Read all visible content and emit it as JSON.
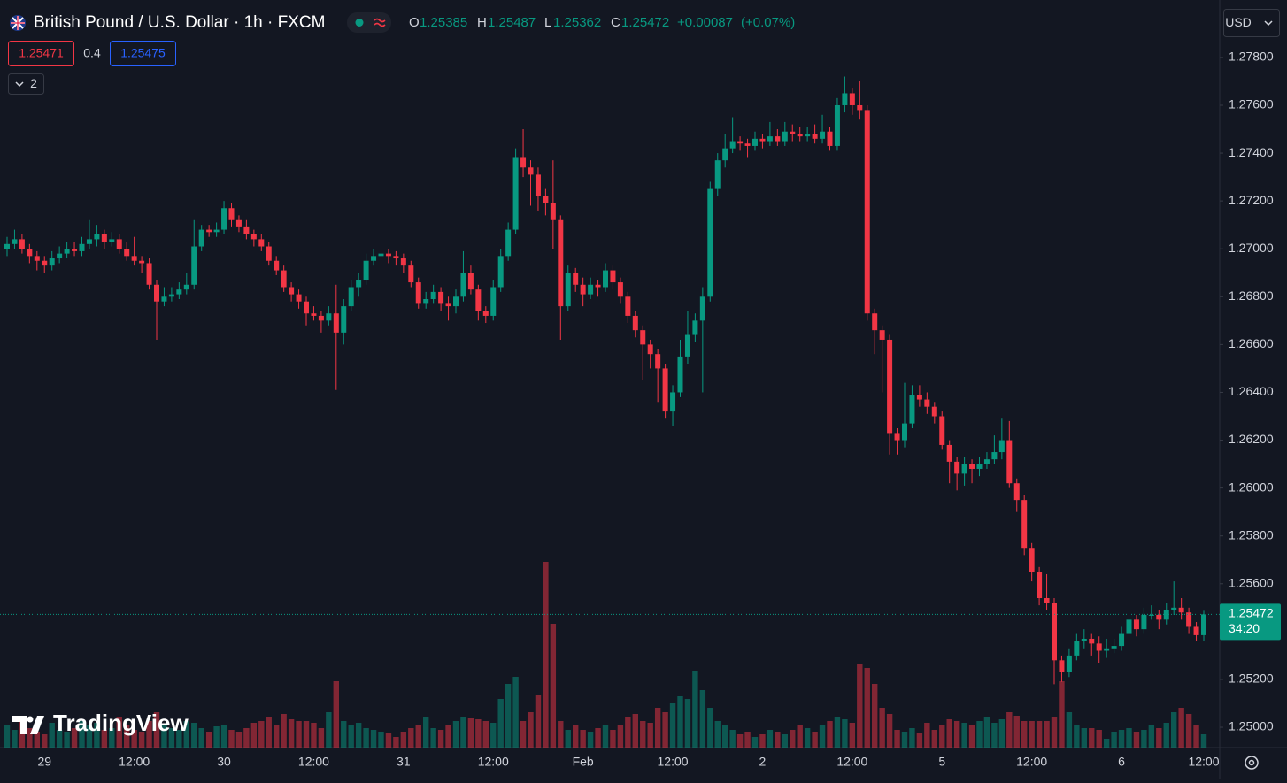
{
  "header": {
    "title": "British Pound / U.S. Dollar · 1h · FXCM",
    "ohlc_labels": [
      "O",
      "H",
      "L",
      "C"
    ],
    "change": {
      "value": 0.00087,
      "label": "+0.00087"
    },
    "change_pct": {
      "value": 0.07,
      "label": "(+0.07%)"
    },
    "bid": 1.25471,
    "spread": 0.4,
    "ask": 1.25475,
    "indicators": 2,
    "currency": "USD",
    "countdown": "34:20",
    "logo": "TradingView"
  },
  "chart_data": {
    "type": "candlestick",
    "up_color": "#089981",
    "down_color": "#f23645",
    "grid": false,
    "ylim": [
      1.24915,
      1.2804
    ],
    "yticks": [
      {
        "value": 1.25,
        "label": "1.25000"
      },
      {
        "value": 1.252,
        "label": "1.25200"
      },
      {
        "value": 1.254,
        "label": "1.25400"
      },
      {
        "value": 1.256,
        "label": "1.25600"
      },
      {
        "value": 1.258,
        "label": "1.25800"
      },
      {
        "value": 1.26,
        "label": "1.26000"
      },
      {
        "value": 1.262,
        "label": "1.26200"
      },
      {
        "value": 1.264,
        "label": "1.26400"
      },
      {
        "value": 1.266,
        "label": "1.26600"
      },
      {
        "value": 1.268,
        "label": "1.26800"
      },
      {
        "value": 1.27,
        "label": "1.27000"
      },
      {
        "value": 1.272,
        "label": "1.27200"
      },
      {
        "value": 1.274,
        "label": "1.27400"
      },
      {
        "value": 1.276,
        "label": "1.27600"
      },
      {
        "value": 1.278,
        "label": "1.27800"
      }
    ],
    "categories": [
      null,
      null,
      null,
      null,
      null,
      "29",
      null,
      null,
      null,
      null,
      null,
      null,
      null,
      null,
      null,
      null,
      null,
      "12:00",
      null,
      null,
      null,
      null,
      null,
      null,
      null,
      null,
      null,
      null,
      null,
      "30",
      null,
      null,
      null,
      null,
      null,
      null,
      null,
      null,
      null,
      null,
      null,
      "12:00",
      null,
      null,
      null,
      null,
      null,
      null,
      null,
      null,
      null,
      null,
      null,
      "31",
      null,
      null,
      null,
      null,
      null,
      null,
      null,
      null,
      null,
      null,
      null,
      "12:00",
      null,
      null,
      null,
      null,
      null,
      null,
      null,
      null,
      null,
      null,
      null,
      "Feb",
      null,
      null,
      null,
      null,
      null,
      null,
      null,
      null,
      null,
      null,
      null,
      "12:00",
      null,
      null,
      null,
      null,
      null,
      null,
      null,
      null,
      null,
      null,
      null,
      "2",
      null,
      null,
      null,
      null,
      null,
      null,
      null,
      null,
      null,
      null,
      null,
      "12:00",
      null,
      null,
      null,
      null,
      null,
      null,
      null,
      null,
      null,
      null,
      null,
      "5",
      null,
      null,
      null,
      null,
      null,
      null,
      null,
      null,
      null,
      null,
      null,
      "12:00",
      null,
      null,
      null,
      null,
      null,
      null,
      null,
      null,
      null,
      null,
      null,
      "6",
      null,
      null,
      null,
      null,
      null,
      null,
      null,
      null,
      null,
      null,
      "12:00"
    ],
    "ohlc": [
      [
        1.27,
        1.2705,
        1.2697,
        1.2702
      ],
      [
        1.2702,
        1.2708,
        1.27,
        1.2704
      ],
      [
        1.2704,
        1.2706,
        1.2698,
        1.27
      ],
      [
        1.27,
        1.2702,
        1.2694,
        1.2697
      ],
      [
        1.2697,
        1.2699,
        1.2691,
        1.2695
      ],
      [
        1.2695,
        1.2697,
        1.269,
        1.2693
      ],
      [
        1.2693,
        1.2699,
        1.2691,
        1.2696
      ],
      [
        1.2696,
        1.2701,
        1.2694,
        1.2698
      ],
      [
        1.2698,
        1.2703,
        1.2696,
        1.27
      ],
      [
        1.27,
        1.2703,
        1.2697,
        1.2699
      ],
      [
        1.2699,
        1.2705,
        1.2697,
        1.2702
      ],
      [
        1.2702,
        1.2712,
        1.27,
        1.2704
      ],
      [
        1.2704,
        1.271,
        1.2701,
        1.2706
      ],
      [
        1.2706,
        1.2708,
        1.27,
        1.2703
      ],
      [
        1.2703,
        1.2707,
        1.2701,
        1.2704
      ],
      [
        1.2704,
        1.2706,
        1.2698,
        1.27
      ],
      [
        1.27,
        1.2703,
        1.2695,
        1.2697
      ],
      [
        1.2697,
        1.2705,
        1.2693,
        1.2695
      ],
      [
        1.2695,
        1.2697,
        1.269,
        1.2694
      ],
      [
        1.2694,
        1.2696,
        1.2683,
        1.2685
      ],
      [
        1.2685,
        1.2687,
        1.2662,
        1.2678
      ],
      [
        1.2678,
        1.2684,
        1.2676,
        1.268
      ],
      [
        1.268,
        1.2684,
        1.2678,
        1.2681
      ],
      [
        1.2681,
        1.2686,
        1.2679,
        1.2683
      ],
      [
        1.2683,
        1.269,
        1.2681,
        1.2685
      ],
      [
        1.2685,
        1.2712,
        1.2683,
        1.2701
      ],
      [
        1.2701,
        1.271,
        1.2699,
        1.2708
      ],
      [
        1.2708,
        1.271,
        1.2705,
        1.2707
      ],
      [
        1.2707,
        1.2711,
        1.2705,
        1.2708
      ],
      [
        1.2708,
        1.272,
        1.2706,
        1.2717
      ],
      [
        1.2717,
        1.2719,
        1.2709,
        1.2712
      ],
      [
        1.2712,
        1.2714,
        1.2707,
        1.2709
      ],
      [
        1.2709,
        1.2712,
        1.2704,
        1.2706
      ],
      [
        1.2706,
        1.2708,
        1.2701,
        1.2704
      ],
      [
        1.2704,
        1.2706,
        1.2699,
        1.2701
      ],
      [
        1.2701,
        1.2703,
        1.2693,
        1.2695
      ],
      [
        1.2695,
        1.2697,
        1.2689,
        1.2691
      ],
      [
        1.2691,
        1.2693,
        1.2682,
        1.2684
      ],
      [
        1.2684,
        1.2686,
        1.2678,
        1.2681
      ],
      [
        1.2681,
        1.2683,
        1.2675,
        1.2678
      ],
      [
        1.2678,
        1.268,
        1.2668,
        1.2673
      ],
      [
        1.2673,
        1.2676,
        1.267,
        1.2672
      ],
      [
        1.2672,
        1.2674,
        1.2665,
        1.267
      ],
      [
        1.267,
        1.2676,
        1.2668,
        1.2673
      ],
      [
        1.2673,
        1.2685,
        1.2641,
        1.2665
      ],
      [
        1.2665,
        1.2679,
        1.266,
        1.2676
      ],
      [
        1.2676,
        1.2687,
        1.2674,
        1.2684
      ],
      [
        1.2684,
        1.269,
        1.268,
        1.2687
      ],
      [
        1.2687,
        1.2698,
        1.2685,
        1.2695
      ],
      [
        1.2695,
        1.27,
        1.2693,
        1.2697
      ],
      [
        1.2697,
        1.2701,
        1.2695,
        1.2698
      ],
      [
        1.2698,
        1.27,
        1.2694,
        1.2697
      ],
      [
        1.2697,
        1.2699,
        1.2693,
        1.2696
      ],
      [
        1.2696,
        1.2698,
        1.269,
        1.2693
      ],
      [
        1.2693,
        1.2695,
        1.2684,
        1.2686
      ],
      [
        1.2686,
        1.2688,
        1.2675,
        1.2677
      ],
      [
        1.2677,
        1.2682,
        1.2675,
        1.2679
      ],
      [
        1.2679,
        1.2685,
        1.2677,
        1.2682
      ],
      [
        1.2682,
        1.2684,
        1.2674,
        1.2677
      ],
      [
        1.2677,
        1.268,
        1.267,
        1.2676
      ],
      [
        1.2676,
        1.2683,
        1.2673,
        1.268
      ],
      [
        1.268,
        1.2699,
        1.2678,
        1.269
      ],
      [
        1.269,
        1.2693,
        1.2681,
        1.2683
      ],
      [
        1.2683,
        1.2685,
        1.267,
        1.2674
      ],
      [
        1.2674,
        1.2676,
        1.2669,
        1.2672
      ],
      [
        1.2672,
        1.2687,
        1.267,
        1.2684
      ],
      [
        1.2684,
        1.27,
        1.2682,
        1.2697
      ],
      [
        1.2697,
        1.2711,
        1.2695,
        1.2708
      ],
      [
        1.2708,
        1.2742,
        1.2706,
        1.2738
      ],
      [
        1.2738,
        1.275,
        1.273,
        1.2734
      ],
      [
        1.2734,
        1.2737,
        1.2718,
        1.2731
      ],
      [
        1.2731,
        1.2734,
        1.2716,
        1.2722
      ],
      [
        1.2722,
        1.2725,
        1.2714,
        1.2719
      ],
      [
        1.2719,
        1.2737,
        1.27,
        1.2712
      ],
      [
        1.2712,
        1.2714,
        1.2662,
        1.2676
      ],
      [
        1.2676,
        1.2693,
        1.2674,
        1.269
      ],
      [
        1.269,
        1.2692,
        1.2682,
        1.2685
      ],
      [
        1.2685,
        1.2688,
        1.2676,
        1.2681
      ],
      [
        1.2681,
        1.2688,
        1.2679,
        1.2685
      ],
      [
        1.2685,
        1.2687,
        1.268,
        1.2684
      ],
      [
        1.2684,
        1.2694,
        1.2682,
        1.2691
      ],
      [
        1.2691,
        1.2693,
        1.2683,
        1.2686
      ],
      [
        1.2686,
        1.2688,
        1.2677,
        1.268
      ],
      [
        1.268,
        1.2682,
        1.2669,
        1.2672
      ],
      [
        1.2672,
        1.2674,
        1.2663,
        1.2666
      ],
      [
        1.2666,
        1.2668,
        1.2645,
        1.266
      ],
      [
        1.266,
        1.2662,
        1.265,
        1.2656
      ],
      [
        1.2656,
        1.2658,
        1.2636,
        1.265
      ],
      [
        1.265,
        1.2652,
        1.2629,
        1.2632
      ],
      [
        1.2632,
        1.2643,
        1.2626,
        1.264
      ],
      [
        1.264,
        1.2662,
        1.2638,
        1.2655
      ],
      [
        1.2655,
        1.2674,
        1.2652,
        1.2664
      ],
      [
        1.2664,
        1.2673,
        1.2661,
        1.267
      ],
      [
        1.267,
        1.2684,
        1.264,
        1.268
      ],
      [
        1.268,
        1.2728,
        1.2678,
        1.2725
      ],
      [
        1.2725,
        1.274,
        1.2722,
        1.2737
      ],
      [
        1.2737,
        1.2748,
        1.2734,
        1.2742
      ],
      [
        1.2742,
        1.2755,
        1.274,
        1.2745
      ],
      [
        1.2745,
        1.2747,
        1.2741,
        1.2744
      ],
      [
        1.2744,
        1.2746,
        1.2738,
        1.2743
      ],
      [
        1.2743,
        1.2749,
        1.2741,
        1.2746
      ],
      [
        1.2746,
        1.2748,
        1.2742,
        1.2745
      ],
      [
        1.2745,
        1.2753,
        1.2743,
        1.2747
      ],
      [
        1.2747,
        1.275,
        1.2743,
        1.2745
      ],
      [
        1.2745,
        1.2753,
        1.2743,
        1.2749
      ],
      [
        1.2749,
        1.2752,
        1.2745,
        1.2748
      ],
      [
        1.2748,
        1.2751,
        1.2745,
        1.2747
      ],
      [
        1.2747,
        1.2751,
        1.2745,
        1.2748
      ],
      [
        1.2748,
        1.2752,
        1.2744,
        1.2746
      ],
      [
        1.2746,
        1.2756,
        1.2744,
        1.2749
      ],
      [
        1.2749,
        1.2751,
        1.2741,
        1.2743
      ],
      [
        1.2743,
        1.2763,
        1.2741,
        1.276
      ],
      [
        1.276,
        1.2772,
        1.2757,
        1.2765
      ],
      [
        1.2765,
        1.2767,
        1.2756,
        1.276
      ],
      [
        1.276,
        1.277,
        1.2754,
        1.2758
      ],
      [
        1.2758,
        1.276,
        1.267,
        1.2673
      ],
      [
        1.2673,
        1.2675,
        1.2656,
        1.2666
      ],
      [
        1.2666,
        1.2668,
        1.264,
        1.2662
      ],
      [
        1.2662,
        1.2664,
        1.2614,
        1.2623
      ],
      [
        1.2623,
        1.2625,
        1.2614,
        1.262
      ],
      [
        1.262,
        1.2644,
        1.2617,
        1.2627
      ],
      [
        1.2627,
        1.2643,
        1.2625,
        1.2639
      ],
      [
        1.2639,
        1.2643,
        1.2634,
        1.2637
      ],
      [
        1.2637,
        1.264,
        1.2631,
        1.2634
      ],
      [
        1.2634,
        1.2636,
        1.2627,
        1.263
      ],
      [
        1.263,
        1.2632,
        1.2616,
        1.2618
      ],
      [
        1.2618,
        1.262,
        1.2602,
        1.2611
      ],
      [
        1.2611,
        1.2613,
        1.2599,
        1.2606
      ],
      [
        1.2606,
        1.2613,
        1.2601,
        1.261
      ],
      [
        1.261,
        1.2612,
        1.2602,
        1.2608
      ],
      [
        1.2608,
        1.2613,
        1.2605,
        1.261
      ],
      [
        1.261,
        1.2615,
        1.2608,
        1.2612
      ],
      [
        1.2612,
        1.2622,
        1.261,
        1.2615
      ],
      [
        1.2615,
        1.2629,
        1.2612,
        1.262
      ],
      [
        1.262,
        1.2628,
        1.26,
        1.2602
      ],
      [
        1.2602,
        1.2604,
        1.259,
        1.2595
      ],
      [
        1.2595,
        1.2597,
        1.2572,
        1.2575
      ],
      [
        1.2575,
        1.2577,
        1.2561,
        1.2565
      ],
      [
        1.2565,
        1.2567,
        1.2551,
        1.2554
      ],
      [
        1.2554,
        1.2564,
        1.2549,
        1.2552
      ],
      [
        1.2552,
        1.2554,
        1.2518,
        1.2528
      ],
      [
        1.2528,
        1.253,
        1.2519,
        1.2523
      ],
      [
        1.2523,
        1.2533,
        1.2521,
        1.253
      ],
      [
        1.253,
        1.2539,
        1.2528,
        1.2536
      ],
      [
        1.2536,
        1.2541,
        1.2533,
        1.2537
      ],
      [
        1.2537,
        1.2539,
        1.253,
        1.2535
      ],
      [
        1.2535,
        1.2538,
        1.2527,
        1.2532
      ],
      [
        1.2532,
        1.2537,
        1.2529,
        1.2533
      ],
      [
        1.2533,
        1.2537,
        1.2531,
        1.2534
      ],
      [
        1.2534,
        1.2542,
        1.2532,
        1.2539
      ],
      [
        1.2539,
        1.2548,
        1.2537,
        1.2545
      ],
      [
        1.2545,
        1.2547,
        1.2538,
        1.2541
      ],
      [
        1.2541,
        1.255,
        1.2539,
        1.2547
      ],
      [
        1.2547,
        1.2551,
        1.2545,
        1.2547
      ],
      [
        1.2547,
        1.2549,
        1.2541,
        1.2545
      ],
      [
        1.2545,
        1.2552,
        1.2543,
        1.2549
      ],
      [
        1.2549,
        1.2561,
        1.2547,
        1.255
      ],
      [
        1.255,
        1.2554,
        1.2545,
        1.2548
      ],
      [
        1.2548,
        1.255,
        1.2539,
        1.2542
      ],
      [
        1.2542,
        1.2544,
        1.2536,
        1.25385
      ],
      [
        1.25385,
        1.25487,
        1.25362,
        1.25472
      ]
    ],
    "volume": [
      25,
      20,
      30,
      22,
      18,
      15,
      28,
      20,
      18,
      22,
      30,
      25,
      28,
      20,
      22,
      35,
      25,
      20,
      18,
      30,
      40,
      25,
      22,
      20,
      30,
      28,
      22,
      18,
      24,
      25,
      20,
      18,
      22,
      28,
      30,
      35,
      25,
      38,
      32,
      30,
      30,
      28,
      22,
      40,
      75,
      30,
      25,
      28,
      22,
      20,
      18,
      16,
      12,
      18,
      22,
      25,
      35,
      22,
      20,
      25,
      30,
      35,
      34,
      32,
      30,
      28,
      55,
      72,
      80,
      30,
      40,
      60,
      210,
      140,
      30,
      20,
      25,
      20,
      18,
      22,
      25,
      20,
      25,
      35,
      38,
      30,
      28,
      45,
      40,
      50,
      58,
      55,
      87,
      65,
      45,
      30,
      25,
      20,
      15,
      18,
      12,
      15,
      20,
      18,
      15,
      20,
      25,
      22,
      18,
      25,
      30,
      35,
      32,
      28,
      95,
      90,
      72,
      45,
      38,
      20,
      18,
      22,
      16,
      28,
      20,
      25,
      32,
      30,
      28,
      25,
      30,
      35,
      28,
      32,
      40,
      36,
      30,
      30,
      30,
      30,
      35,
      75,
      40,
      25,
      22,
      22,
      20,
      10,
      18,
      20,
      22,
      18,
      20,
      25,
      22,
      28,
      40,
      45,
      38,
      25,
      15
    ]
  }
}
